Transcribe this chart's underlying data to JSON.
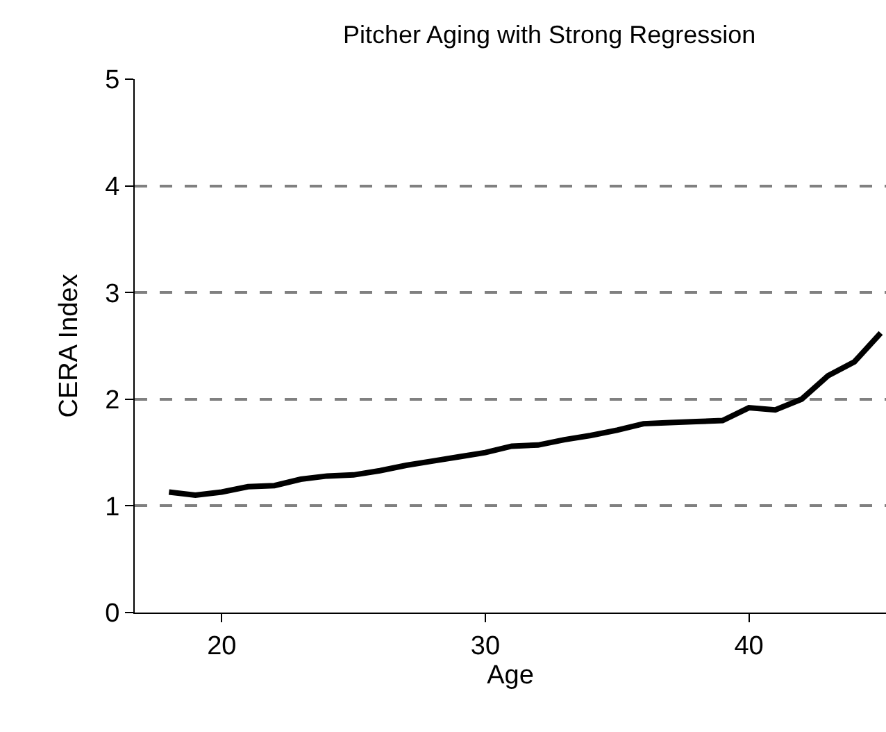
{
  "chart_data": {
    "type": "line",
    "title": "Pitcher Aging with Strong Regression",
    "xlabel": "Age",
    "ylabel": "CERA Index",
    "x": [
      18,
      19,
      20,
      21,
      22,
      23,
      24,
      25,
      26,
      27,
      28,
      29,
      30,
      31,
      32,
      33,
      34,
      35,
      36,
      37,
      38,
      39,
      40,
      41,
      42,
      43,
      44,
      45
    ],
    "series": [
      {
        "color": "#000000",
        "values": [
          1.13,
          1.1,
          1.13,
          1.18,
          1.19,
          1.25,
          1.28,
          1.29,
          1.33,
          1.38,
          1.42,
          1.46,
          1.5,
          1.56,
          1.57,
          1.62,
          1.66,
          1.71,
          1.77,
          1.78,
          1.79,
          1.8,
          1.92,
          1.9,
          2.0,
          2.22,
          2.35,
          2.62
        ]
      }
    ],
    "xlim": [
      16.7,
      45.2
    ],
    "xticks": [
      20,
      30,
      40
    ],
    "ylim": [
      0,
      5
    ],
    "yticks": [
      0,
      1,
      2,
      3,
      4,
      5
    ],
    "grid": "y",
    "legend": false,
    "marker": "none",
    "line_style": "solid"
  }
}
